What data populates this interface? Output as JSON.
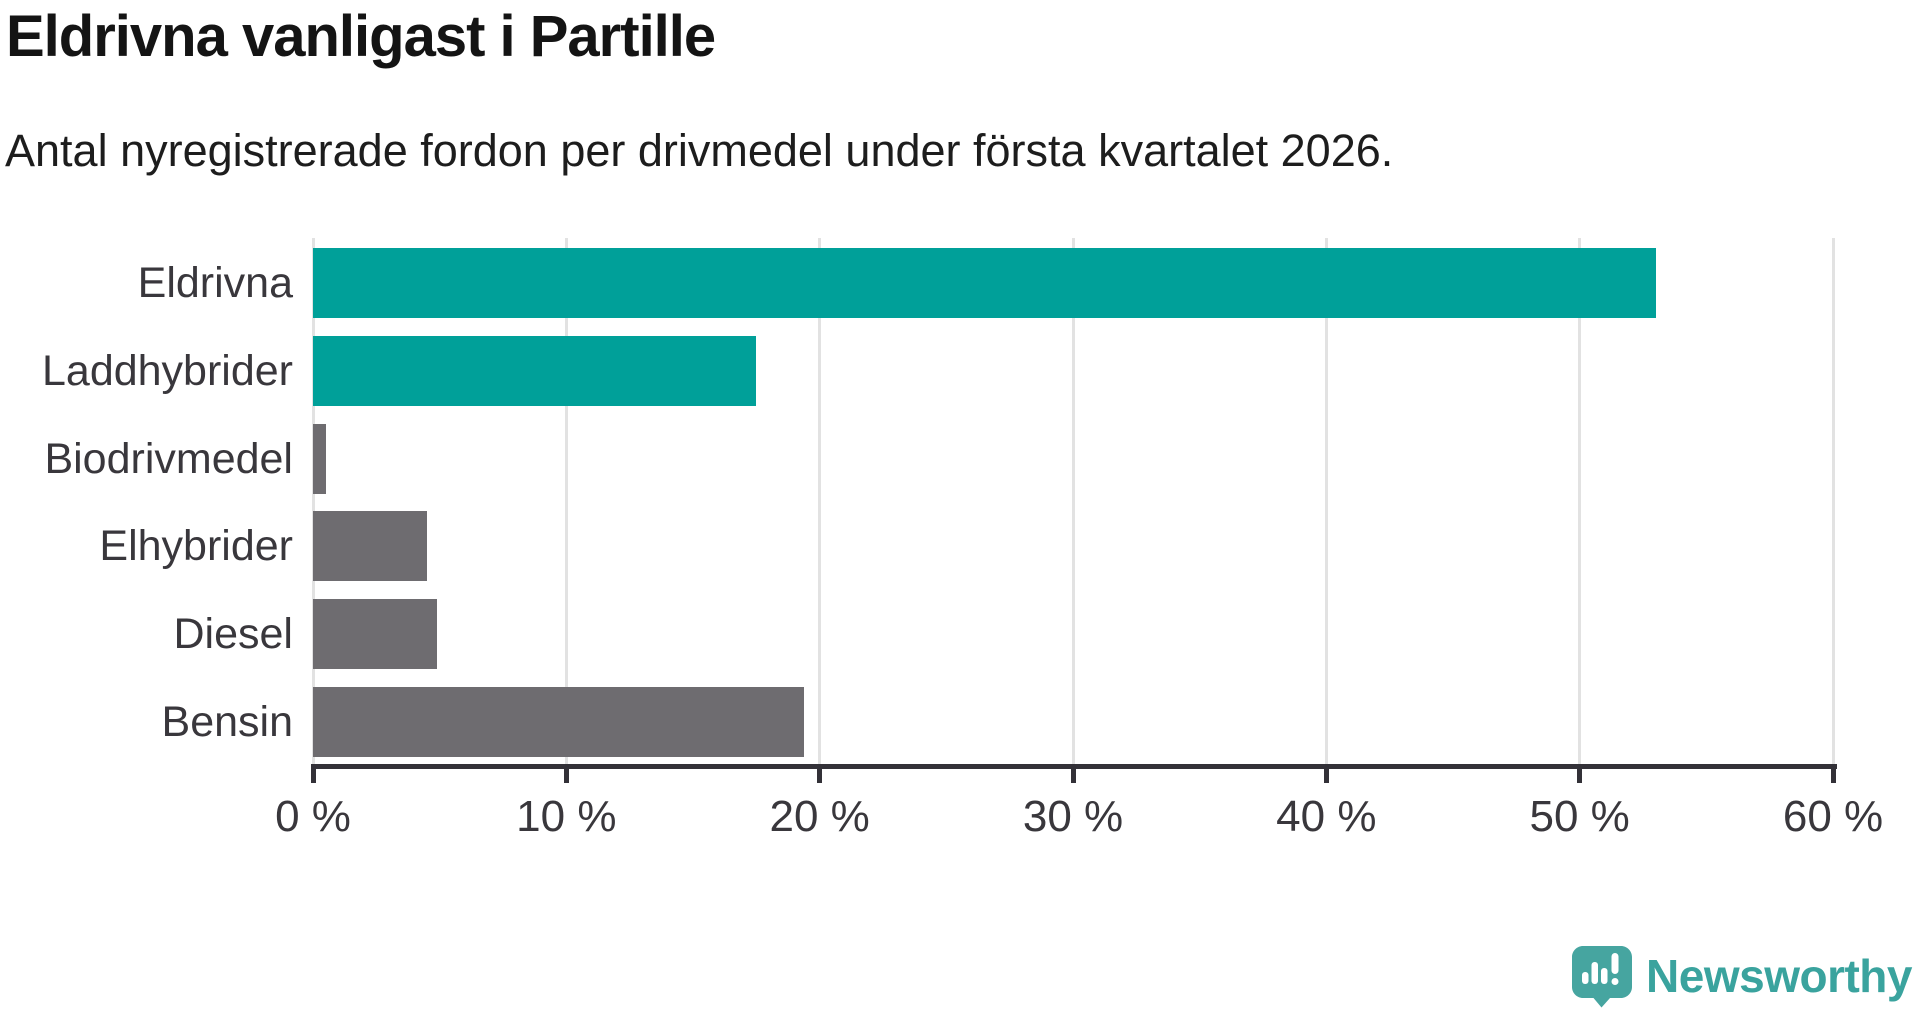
{
  "title": "Eldrivna vanligast i Partille",
  "subtitle": "Antal nyregistrerade fordon per drivmedel under första kvartalet 2026.",
  "colors": {
    "bar_teal": "#00a099",
    "bar_gray": "#6e6c70",
    "gridline": "#e2e2e2",
    "axis": "#333138",
    "label_text": "#39373c",
    "title_text": "#141414",
    "logo_bubble": "#46a5a0",
    "logo_text": "#3aa39e",
    "background": "#ffffff"
  },
  "chart_data": {
    "type": "bar",
    "orientation": "horizontal",
    "title": "Eldrivna vanligast i Partille",
    "subtitle": "Antal nyregistrerade fordon per drivmedel under första kvartalet 2026.",
    "categories": [
      "Eldrivna",
      "Laddhybrider",
      "Biodrivmedel",
      "Elhybrider",
      "Diesel",
      "Bensin"
    ],
    "values": [
      53.0,
      17.5,
      0.5,
      4.5,
      4.9,
      19.4
    ],
    "unit": "%",
    "bar_colors": [
      "#00a099",
      "#00a099",
      "#6e6c70",
      "#6e6c70",
      "#6e6c70",
      "#6e6c70"
    ],
    "xlabel": "",
    "ylabel": "",
    "xlim": [
      0,
      60
    ],
    "x_ticks": [
      0,
      10,
      20,
      30,
      40,
      50,
      60
    ],
    "x_tick_labels": [
      "0 %",
      "10 %",
      "20 %",
      "30 %",
      "40 %",
      "50 %",
      "60 %"
    ],
    "grid": true,
    "legend": false
  },
  "footer": {
    "brand": "Newsworthy",
    "logo_icon": "newsworthy-bubble-chart-icon"
  }
}
